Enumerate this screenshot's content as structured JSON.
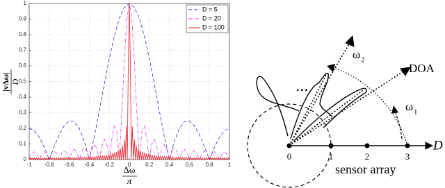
{
  "chart_data": {
    "type": "line",
    "xlabel": {
      "numerator": "Δω",
      "denominator": "π"
    },
    "ylabel": {
      "numerator": "|vΔω|",
      "denominator": "D"
    },
    "xlim": [
      -1,
      1
    ],
    "ylim": [
      0,
      1
    ],
    "xticks": [
      -1,
      -0.8,
      -0.6,
      -0.4,
      -0.2,
      0,
      0.2,
      0.4,
      0.6,
      0.8,
      1
    ],
    "yticks": [
      0,
      0.1,
      0.2,
      0.3,
      0.4,
      0.5,
      0.6,
      0.7,
      0.8,
      0.9,
      1
    ],
    "grid": true,
    "legend": "upper right",
    "series": [
      {
        "name": "D = 5",
        "color": "#2e2e9e",
        "style": "dashed",
        "x": [
          -1,
          -0.95,
          -0.9,
          -0.85,
          -0.8,
          -0.75,
          -0.7,
          -0.65,
          -0.6,
          -0.55,
          -0.5,
          -0.45,
          -0.4,
          -0.35,
          -0.3,
          -0.25,
          -0.2,
          -0.15,
          -0.1,
          -0.05,
          0,
          0.05,
          0.1,
          0.15,
          0.2,
          0.25,
          0.3,
          0.35,
          0.4,
          0.45,
          0.5,
          0.55,
          0.6,
          0.65,
          0.7,
          0.75,
          0.8,
          0.85,
          0.9,
          0.95,
          1
        ],
        "values": [
          0.2,
          0.185,
          0.143,
          0.079,
          0,
          0.083,
          0.159,
          0.217,
          0.247,
          0.243,
          0.2,
          0.118,
          0,
          0.146,
          0.312,
          0.483,
          0.647,
          0.792,
          0.904,
          0.975,
          1,
          0.975,
          0.904,
          0.792,
          0.647,
          0.483,
          0.312,
          0.146,
          0,
          0.118,
          0.2,
          0.243,
          0.247,
          0.217,
          0.159,
          0.083,
          0,
          0.079,
          0.143,
          0.185,
          0.2
        ]
      },
      {
        "name": "D = 20",
        "color": "#d23cd2",
        "style": "dashdot",
        "x": [
          -1,
          -0.975,
          -0.95,
          -0.925,
          -0.9,
          -0.875,
          -0.85,
          -0.825,
          -0.8,
          -0.775,
          -0.75,
          -0.725,
          -0.7,
          -0.675,
          -0.65,
          -0.625,
          -0.6,
          -0.575,
          -0.55,
          -0.525,
          -0.5,
          -0.475,
          -0.45,
          -0.425,
          -0.4,
          -0.375,
          -0.35,
          -0.325,
          -0.3,
          -0.275,
          -0.25,
          -0.225,
          -0.2,
          -0.175,
          -0.15,
          -0.125,
          -0.1,
          -0.075,
          -0.05,
          -0.025,
          0,
          0.025,
          0.05,
          0.075,
          0.1,
          0.125,
          0.15,
          0.175,
          0.2,
          0.225,
          0.25,
          0.275,
          0.3,
          0.325,
          0.35,
          0.375,
          0.4,
          0.425,
          0.45,
          0.475,
          0.5,
          0.525,
          0.55,
          0.575,
          0.6,
          0.625,
          0.65,
          0.675,
          0.7,
          0.725,
          0.75,
          0.775,
          0.8,
          0.825,
          0.85,
          0.875,
          0.9,
          0.925,
          0.95,
          0.975,
          1
        ],
        "values": [
          0,
          0.035,
          0.05,
          0.036,
          0,
          0.036,
          0.051,
          0.037,
          0,
          0.038,
          0.054,
          0.039,
          0,
          0.041,
          0.059,
          0.043,
          0,
          0.045,
          0.066,
          0.048,
          0,
          0.052,
          0.077,
          0.057,
          0,
          0.064,
          0.096,
          0.072,
          0,
          0.084,
          0.131,
          0.102,
          0,
          0.13,
          0.214,
          0.181,
          0,
          0.301,
          0.637,
          0.9,
          1,
          0.9,
          0.637,
          0.301,
          0,
          0.181,
          0.214,
          0.13,
          0,
          0.102,
          0.131,
          0.084,
          0,
          0.072,
          0.096,
          0.064,
          0,
          0.057,
          0.077,
          0.052,
          0,
          0.048,
          0.066,
          0.045,
          0,
          0.043,
          0.059,
          0.041,
          0,
          0.039,
          0.054,
          0.038,
          0,
          0.037,
          0.051,
          0.036,
          0,
          0.036,
          0.05,
          0.035,
          0
        ]
      },
      {
        "name": "D = 100",
        "color": "#e8202a",
        "style": "solid",
        "x": [
          -1,
          -0.99,
          -0.98,
          -0.97,
          -0.96,
          -0.95,
          -0.94,
          -0.93,
          -0.92,
          -0.91,
          -0.9,
          -0.89,
          -0.88,
          -0.87,
          -0.86,
          -0.85,
          -0.84,
          -0.83,
          -0.82,
          -0.81,
          -0.8,
          -0.79,
          -0.78,
          -0.77,
          -0.76,
          -0.75,
          -0.74,
          -0.73,
          -0.72,
          -0.71,
          -0.7,
          -0.69,
          -0.68,
          -0.67,
          -0.66,
          -0.65,
          -0.64,
          -0.63,
          -0.62,
          -0.61,
          -0.6,
          -0.59,
          -0.58,
          -0.57,
          -0.56,
          -0.55,
          -0.54,
          -0.53,
          -0.52,
          -0.51,
          -0.5,
          -0.49,
          -0.48,
          -0.47,
          -0.46,
          -0.45,
          -0.44,
          -0.43,
          -0.42,
          -0.41,
          -0.4,
          -0.39,
          -0.38,
          -0.37,
          -0.36,
          -0.35,
          -0.34,
          -0.33,
          -0.32,
          -0.31,
          -0.3,
          -0.29,
          -0.28,
          -0.27,
          -0.26,
          -0.25,
          -0.24,
          -0.23,
          -0.22,
          -0.21,
          -0.2,
          -0.19,
          -0.18,
          -0.17,
          -0.16,
          -0.15,
          -0.14,
          -0.13,
          -0.12,
          -0.11,
          -0.1,
          -0.09,
          -0.08,
          -0.07,
          -0.06,
          -0.05,
          -0.04,
          -0.03,
          -0.02,
          -0.01,
          0,
          0.01,
          0.02,
          0.03,
          0.04,
          0.05,
          0.06,
          0.07,
          0.08,
          0.09,
          0.1,
          0.11,
          0.12,
          0.13,
          0.14,
          0.15,
          0.16,
          0.17,
          0.18,
          0.19,
          0.2,
          0.21,
          0.22,
          0.23,
          0.24,
          0.25,
          0.26,
          0.27,
          0.28,
          0.29,
          0.3,
          0.31,
          0.32,
          0.33,
          0.34,
          0.35,
          0.36,
          0.37,
          0.38,
          0.39,
          0.4,
          0.41,
          0.42,
          0.43,
          0.44,
          0.45,
          0.46,
          0.47,
          0.48,
          0.49,
          0.5,
          0.51,
          0.52,
          0.53,
          0.54,
          0.55,
          0.56,
          0.57,
          0.58,
          0.59,
          0.6,
          0.61,
          0.62,
          0.63,
          0.64,
          0.65,
          0.66,
          0.67,
          0.68,
          0.69,
          0.7,
          0.71,
          0.72,
          0.73,
          0.74,
          0.75,
          0.76,
          0.77,
          0.78,
          0.79,
          0.8,
          0.81,
          0.82,
          0.83,
          0.84,
          0.85,
          0.86,
          0.87,
          0.88,
          0.89,
          0.9,
          0.91,
          0.92,
          0.93,
          0.94,
          0.95,
          0.96,
          0.97,
          0.98,
          0.99,
          1
        ],
        "values": [
          0,
          0.01,
          0,
          0.01,
          0,
          0.01,
          0,
          0.01,
          0,
          0.01,
          0,
          0.01,
          0,
          0.01,
          0,
          0.01,
          0,
          0.01,
          0,
          0.01,
          0,
          0.011,
          0,
          0.011,
          0,
          0.011,
          0,
          0.011,
          0,
          0.011,
          0,
          0.011,
          0,
          0.012,
          0,
          0.012,
          0,
          0.012,
          0,
          0.012,
          0,
          0.013,
          0,
          0.013,
          0,
          0.013,
          0,
          0.014,
          0,
          0.014,
          0,
          0.014,
          0,
          0.015,
          0,
          0.015,
          0,
          0.016,
          0,
          0.017,
          0,
          0.017,
          0,
          0.018,
          0,
          0.019,
          0,
          0.02,
          0,
          0.021,
          0,
          0.023,
          0,
          0.024,
          0,
          0.026,
          0,
          0.028,
          0,
          0.031,
          0,
          0.034,
          0,
          0.038,
          0,
          0.043,
          0,
          0.049,
          0,
          0.058,
          0,
          0.071,
          0,
          0.091,
          0,
          0.127,
          0,
          0.212,
          0,
          0.637,
          1,
          0.637,
          0,
          0.212,
          0,
          0.127,
          0,
          0.091,
          0,
          0.071,
          0,
          0.058,
          0,
          0.049,
          0,
          0.043,
          0,
          0.038,
          0,
          0.034,
          0,
          0.031,
          0,
          0.028,
          0,
          0.026,
          0,
          0.024,
          0,
          0.023,
          0,
          0.021,
          0,
          0.02,
          0,
          0.019,
          0,
          0.018,
          0,
          0.017,
          0,
          0.017,
          0,
          0.016,
          0,
          0.015,
          0,
          0.015,
          0,
          0.014,
          0,
          0.014,
          0,
          0.014,
          0,
          0.013,
          0,
          0.013,
          0,
          0.013,
          0,
          0.012,
          0,
          0.012,
          0,
          0.012,
          0,
          0.012,
          0,
          0.011,
          0,
          0.011,
          0,
          0.011,
          0,
          0.011,
          0,
          0.011,
          0,
          0.011,
          0,
          0.01,
          0,
          0.01,
          0,
          0.01,
          0,
          0.01,
          0,
          0.01,
          0,
          0.01,
          0,
          0.01,
          0,
          0.01,
          0,
          0.01,
          0,
          0.01,
          0
        ]
      }
    ]
  },
  "diagram": {
    "doa": "DOA",
    "omega1": "ω",
    "omega1_sub": "1",
    "omega2": "ω",
    "omega2_sub": "2",
    "axis": "D",
    "ellipsis": "•••",
    "array": "sensor array",
    "sensors": [
      "0",
      "1",
      "2",
      "3"
    ]
  }
}
